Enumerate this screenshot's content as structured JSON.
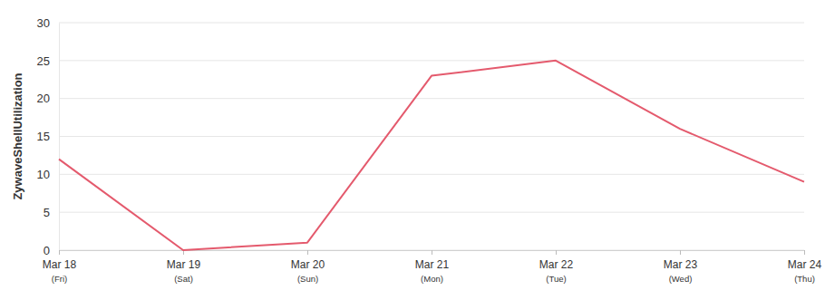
{
  "chart_data": {
    "type": "line",
    "y_label": "ZywaveShellUtilization",
    "categories": [
      "Mar 18\n(Fri)",
      "Mar 19\n(Sat)",
      "Mar 20\n(Sun)",
      "Mar 21\n(Mon)",
      "Mar 22\n(Tue)",
      "Mar 23\n(Wed)",
      "Mar 24\n(Thu)"
    ],
    "values": [
      12,
      0,
      1,
      23,
      25,
      16,
      9
    ],
    "color": "#e45a6d",
    "ylim": [
      0,
      30
    ],
    "yticks": [
      0,
      5,
      10,
      15,
      20,
      25,
      30
    ],
    "grid": true
  }
}
